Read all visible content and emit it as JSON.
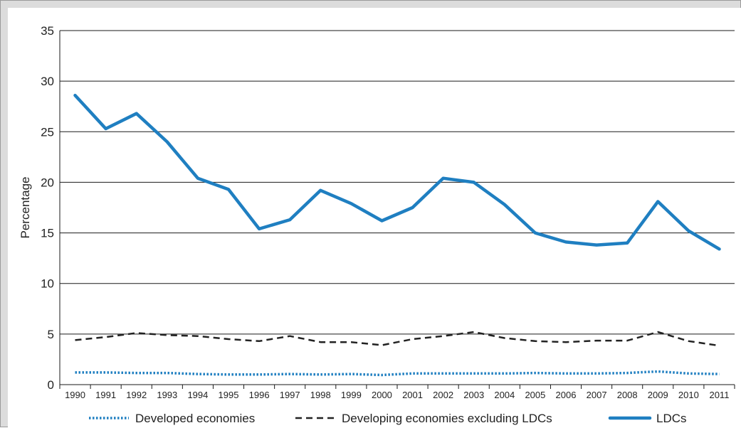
{
  "chart_data": {
    "type": "line",
    "title": "",
    "xlabel": "",
    "ylabel": "Percentage",
    "ylim": [
      0,
      35
    ],
    "yticks": [
      "0",
      "5",
      "10",
      "15",
      "20",
      "25",
      "30",
      "35"
    ],
    "grid": true,
    "legend_position": "bottom",
    "categories": [
      "1990",
      "1991",
      "1992",
      "1993",
      "1994",
      "1995",
      "1996",
      "1997",
      "1998",
      "1999",
      "2000",
      "2001",
      "2002",
      "2003",
      "2004",
      "2005",
      "2006",
      "2007",
      "2008",
      "2009",
      "2010",
      "2011"
    ],
    "series": [
      {
        "name": "Developed economies",
        "style": "dotted",
        "color": "#1f7fc1",
        "values": [
          1.2,
          1.2,
          1.15,
          1.15,
          1.05,
          1.0,
          1.0,
          1.05,
          1.0,
          1.05,
          0.95,
          1.1,
          1.1,
          1.1,
          1.1,
          1.15,
          1.1,
          1.1,
          1.15,
          1.3,
          1.1,
          1.05
        ]
      },
      {
        "name": "Developing economies excluding LDCs",
        "style": "dashed",
        "color": "#222222",
        "values": [
          4.4,
          4.7,
          5.1,
          4.9,
          4.8,
          4.5,
          4.3,
          4.8,
          4.2,
          4.2,
          3.9,
          4.5,
          4.8,
          5.2,
          4.6,
          4.3,
          4.2,
          4.35,
          4.35,
          5.2,
          4.3,
          3.85
        ]
      },
      {
        "name": "LDCs",
        "style": "solid",
        "color": "#1f7fc1",
        "values": [
          28.6,
          25.3,
          26.8,
          24.0,
          20.4,
          19.3,
          15.4,
          16.3,
          19.2,
          17.9,
          16.2,
          17.5,
          20.4,
          20.0,
          17.8,
          15.0,
          14.1,
          13.8,
          14.0,
          18.1,
          15.2,
          13.4
        ]
      }
    ]
  }
}
